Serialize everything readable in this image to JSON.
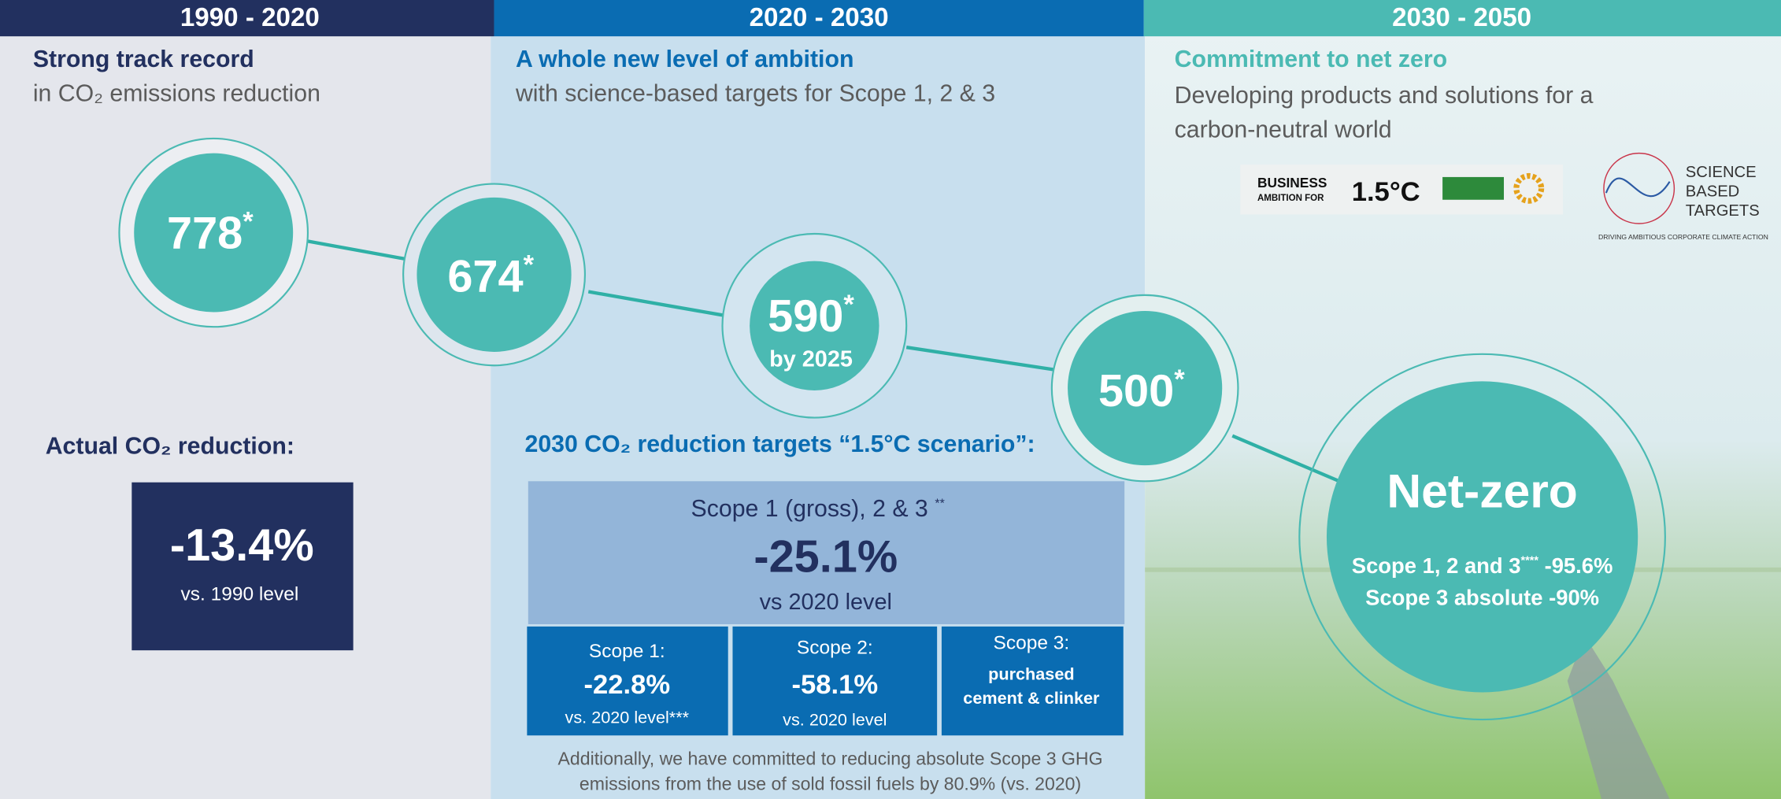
{
  "periods": [
    {
      "label": "1990 - 2020",
      "heading": "Strong track record",
      "subheading": "in CO₂ emissions reduction"
    },
    {
      "label": "2020 - 2030",
      "heading": "A whole new level of ambition",
      "subheading": "with science-based targets for Scope 1, 2 & 3"
    },
    {
      "label": "2030 - 2050",
      "heading": "Commitment to net zero",
      "subheading_lines": [
        "Developing products and solutions for a",
        "carbon-neutral world"
      ]
    }
  ],
  "logos": {
    "business_ambition": [
      "BUSINESS",
      "AMBITION FOR",
      "1.5°C"
    ],
    "sbti": [
      "SCIENCE",
      "BASED",
      "TARGETS"
    ],
    "sbti_tagline": "DRIVING AMBITIOUS CORPORATE CLIMATE ACTION"
  },
  "milestones": [
    {
      "value": "778",
      "note": "*"
    },
    {
      "value": "674",
      "note": "*"
    },
    {
      "value": "590",
      "note": "*",
      "sub": "by 2025"
    },
    {
      "value": "500",
      "note": "*"
    }
  ],
  "net_zero": {
    "title": "Net-zero",
    "line1": "Scope 1, 2 and 3",
    "line1_note": "****",
    "line1_value": " -95.6%",
    "line2": "Scope 3 absolute -90%"
  },
  "actual": {
    "heading": "Actual CO₂ reduction:",
    "value": "-13.4%",
    "caption": "vs. 1990 level"
  },
  "targets": {
    "heading": "2030 CO₂ reduction targets “1.5°C scenario”:",
    "main": {
      "label": "Scope 1 (gross), 2 & 3",
      "note": "**",
      "value": "-25.1%",
      "caption": "vs 2020 level"
    },
    "scopes": [
      {
        "label": "Scope 1:",
        "value": "-22.8%",
        "caption": "vs. 2020 level***"
      },
      {
        "label": "Scope 2:",
        "value": "-58.1%",
        "caption": "vs. 2020 level"
      },
      {
        "label": "Scope 3:",
        "lines": [
          "purchased",
          "cement & clinker"
        ]
      }
    ],
    "footnote": [
      "Additionally, we have committed  to reducing absolute Scope 3 GHG",
      "emissions from the use of sold fossil fuels by 80.9% (vs. 2020)"
    ]
  }
}
